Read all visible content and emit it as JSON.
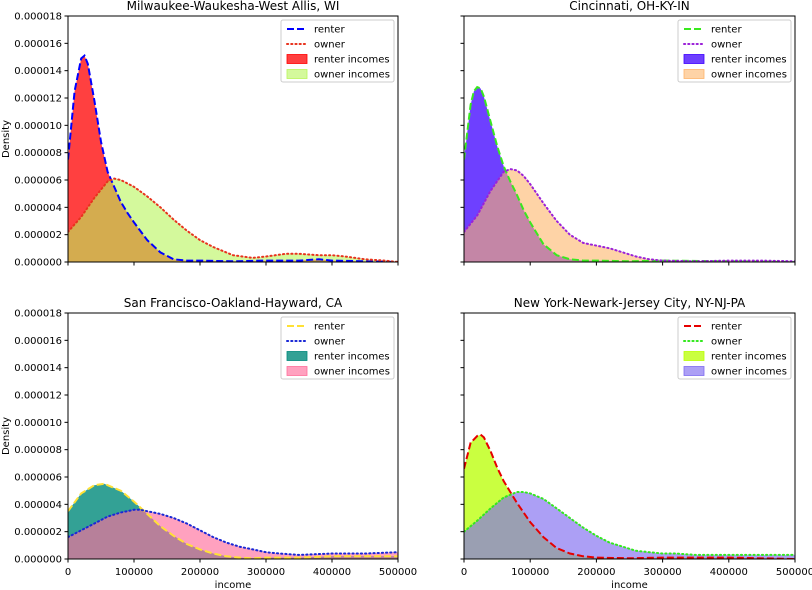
{
  "figure": {
    "ylabel": "Density",
    "xlabel": "income",
    "xticks": [
      "0",
      "100000",
      "200000",
      "300000",
      "400000",
      "500000"
    ],
    "yticks": [
      "0.000000",
      "0.000002",
      "0.000004",
      "0.000006",
      "0.000008",
      "0.000010",
      "0.000012",
      "0.000014",
      "0.000016",
      "0.000018"
    ]
  },
  "chart_data": [
    {
      "type": "area",
      "title": "Milwaukee-Waukesha-West Allis, WI",
      "xlim": [
        0,
        500000
      ],
      "ylim": [
        0,
        1.8e-05
      ],
      "legend_position": "upper right",
      "show_xticklabels": false,
      "show_yticklabels": true,
      "show_ylabel": true,
      "show_xlabel": false,
      "series": [
        {
          "name": "renter",
          "role": "line",
          "style": "dashed",
          "color": "#0000ff",
          "of": "renter",
          "x": [
            0,
            10000,
            20000,
            25000,
            30000,
            40000,
            50000,
            60000,
            70000,
            80000,
            90000,
            100000,
            120000,
            140000,
            160000,
            180000,
            200000,
            250000,
            300000,
            350000,
            380000,
            400000,
            450000,
            500000
          ],
          "y": [
            7.5e-06,
            1.25e-05,
            1.49e-05,
            1.51e-05,
            1.45e-05,
            1.18e-05,
            8.8e-06,
            6.6e-06,
            5.5e-06,
            4.4e-06,
            3.6e-06,
            2.9e-06,
            1.6e-06,
            7e-07,
            2e-07,
            1e-07,
            1e-07,
            5e-08,
            1e-07,
            1e-07,
            2e-07,
            1e-07,
            5e-08,
            0.0
          ]
        },
        {
          "name": "owner",
          "role": "line",
          "style": "dotted",
          "color": "#e8331e",
          "of": "owner",
          "x": [
            0,
            20000,
            40000,
            60000,
            70000,
            80000,
            100000,
            120000,
            140000,
            160000,
            180000,
            200000,
            220000,
            250000,
            280000,
            300000,
            330000,
            350000,
            380000,
            400000,
            420000,
            450000,
            480000,
            500000
          ],
          "y": [
            2.2e-06,
            3.3e-06,
            4.7e-06,
            5.9e-06,
            6.1e-06,
            6e-06,
            5.5e-06,
            4.8e-06,
            4e-06,
            3.1e-06,
            2.3e-06,
            1.6e-06,
            1.1e-06,
            5e-07,
            3e-07,
            4e-07,
            6e-07,
            6e-07,
            5e-07,
            5e-07,
            4e-07,
            2e-07,
            1e-07,
            0.0
          ]
        },
        {
          "name": "renter incomes",
          "role": "fill",
          "color": "#ff0000",
          "opacity": 0.75,
          "of": "renter"
        },
        {
          "name": "owner incomes",
          "role": "fill",
          "color": "#b8f55a",
          "opacity": 0.6,
          "of": "owner"
        }
      ]
    },
    {
      "type": "area",
      "title": "Cincinnati, OH-KY-IN",
      "xlim": [
        0,
        500000
      ],
      "ylim": [
        0,
        1.8e-05
      ],
      "legend_position": "upper right",
      "show_xticklabels": false,
      "show_yticklabels": false,
      "show_ylabel": false,
      "show_xlabel": false,
      "series": [
        {
          "name": "renter",
          "role": "line",
          "style": "dashed",
          "color": "#39e81e",
          "of": "renter",
          "x": [
            0,
            10000,
            15000,
            20000,
            25000,
            30000,
            40000,
            50000,
            60000,
            70000,
            80000,
            90000,
            100000,
            120000,
            140000,
            160000,
            180000,
            200000,
            250000,
            300000,
            400000,
            500000
          ],
          "y": [
            7.5e-06,
            1.15e-05,
            1.25e-05,
            1.28e-05,
            1.27e-05,
            1.21e-05,
            1.03e-05,
            8.5e-06,
            7e-06,
            5.9e-06,
            4.9e-06,
            3.8e-06,
            2.9e-06,
            1.3e-06,
            5e-07,
            2e-07,
            1e-07,
            1e-07,
            5e-08,
            1e-07,
            5e-08,
            0.0
          ]
        },
        {
          "name": "owner",
          "role": "line",
          "style": "dotted",
          "color": "#9b21d8",
          "of": "owner",
          "x": [
            0,
            20000,
            40000,
            60000,
            70000,
            80000,
            90000,
            100000,
            120000,
            140000,
            160000,
            180000,
            200000,
            220000,
            240000,
            260000,
            280000,
            300000,
            350000,
            400000,
            450000,
            500000
          ],
          "y": [
            2.2e-06,
            3.4e-06,
            5.2e-06,
            6.6e-06,
            6.8e-06,
            6.7e-06,
            6.3e-06,
            5.7e-06,
            4.3e-06,
            3e-06,
            2e-06,
            1.4e-06,
            1.2e-06,
            1e-06,
            7e-07,
            4e-07,
            2e-07,
            1e-07,
            5e-08,
            1e-07,
            1e-07,
            5e-08
          ]
        },
        {
          "name": "renter incomes",
          "role": "fill",
          "color": "#3d00ff",
          "opacity": 0.75,
          "of": "renter"
        },
        {
          "name": "owner incomes",
          "role": "fill",
          "color": "#fdb56b",
          "opacity": 0.6,
          "of": "owner"
        }
      ]
    },
    {
      "type": "area",
      "title": "San Francisco-Oakland-Hayward, CA",
      "xlim": [
        0,
        500000
      ],
      "ylim": [
        0,
        1.8e-05
      ],
      "legend_position": "upper right",
      "show_xticklabels": true,
      "show_yticklabels": true,
      "show_ylabel": true,
      "show_xlabel": true,
      "series": [
        {
          "name": "renter",
          "role": "line",
          "style": "dashed",
          "color": "#ffe135",
          "of": "renter",
          "x": [
            0,
            20000,
            40000,
            55000,
            60000,
            80000,
            100000,
            120000,
            140000,
            160000,
            180000,
            200000,
            220000,
            240000,
            260000,
            280000,
            300000,
            350000,
            400000,
            450000,
            500000
          ],
          "y": [
            3.5e-06,
            4.8e-06,
            5.4e-06,
            5.5e-06,
            5.4e-06,
            5e-06,
            4.2e-06,
            3.3e-06,
            2.4e-06,
            1.7e-06,
            1.1e-06,
            7e-07,
            4e-07,
            2e-07,
            1e-07,
            5e-08,
            1e-07,
            1e-07,
            2e-07,
            2e-07,
            2e-07
          ]
        },
        {
          "name": "owner",
          "role": "line",
          "style": "dotted",
          "color": "#1a28d6",
          "of": "owner",
          "x": [
            0,
            20000,
            40000,
            60000,
            80000,
            100000,
            110000,
            120000,
            140000,
            160000,
            180000,
            200000,
            220000,
            240000,
            260000,
            280000,
            300000,
            320000,
            350000,
            400000,
            450000,
            500000
          ],
          "y": [
            1.6e-06,
            2.1e-06,
            2.6e-06,
            3.1e-06,
            3.4e-06,
            3.6e-06,
            3.6e-06,
            3.5e-06,
            3.3e-06,
            3e-06,
            2.6e-06,
            2.1e-06,
            1.6e-06,
            1.2e-06,
            9e-07,
            7e-07,
            5e-07,
            4e-07,
            3e-07,
            4e-07,
            4e-07,
            5e-07
          ]
        },
        {
          "name": "renter incomes",
          "role": "fill",
          "color": "#00897b",
          "opacity": 0.8,
          "of": "renter"
        },
        {
          "name": "owner incomes",
          "role": "fill",
          "color": "#ff6f9c",
          "opacity": 0.65,
          "of": "owner"
        }
      ]
    },
    {
      "type": "area",
      "title": "New York-Newark-Jersey City, NY-NJ-PA",
      "xlim": [
        0,
        500000
      ],
      "ylim": [
        0,
        1.8e-05
      ],
      "legend_position": "upper right",
      "show_xticklabels": true,
      "show_yticklabels": false,
      "show_ylabel": false,
      "show_xlabel": true,
      "series": [
        {
          "name": "renter",
          "role": "line",
          "style": "dashed",
          "color": "#e60000",
          "of": "renter",
          "x": [
            0,
            10000,
            20000,
            25000,
            30000,
            40000,
            50000,
            60000,
            70000,
            80000,
            90000,
            100000,
            120000,
            140000,
            160000,
            180000,
            200000,
            250000,
            300000,
            400000,
            500000
          ],
          "y": [
            6.6e-06,
            8.5e-06,
            9e-06,
            9.1e-06,
            8.9e-06,
            7.9e-06,
            6.7e-06,
            5.7e-06,
            4.9e-06,
            4.1e-06,
            3.4e-06,
            2.7e-06,
            1.6e-06,
            8e-07,
            4e-07,
            2e-07,
            1e-07,
            5e-08,
            1e-07,
            1e-07,
            0.0
          ]
        },
        {
          "name": "owner",
          "role": "line",
          "style": "dotted",
          "color": "#33e81e",
          "of": "owner",
          "x": [
            0,
            20000,
            40000,
            60000,
            80000,
            90000,
            100000,
            120000,
            140000,
            160000,
            180000,
            200000,
            220000,
            240000,
            260000,
            280000,
            300000,
            320000,
            350000,
            400000,
            450000,
            500000
          ],
          "y": [
            2e-06,
            2.8e-06,
            3.7e-06,
            4.5e-06,
            4.9e-06,
            4.9e-06,
            4.8e-06,
            4.4e-06,
            3.7e-06,
            3e-06,
            2.3e-06,
            1.7e-06,
            1.2e-06,
            9e-07,
            6e-07,
            5e-07,
            4e-07,
            4e-07,
            3e-07,
            3e-07,
            3e-07,
            3e-07
          ]
        },
        {
          "name": "renter incomes",
          "role": "fill",
          "color": "#b8ff00",
          "opacity": 0.75,
          "of": "renter"
        },
        {
          "name": "owner incomes",
          "role": "fill",
          "color": "#7f6cf0",
          "opacity": 0.65,
          "of": "owner"
        }
      ]
    }
  ]
}
